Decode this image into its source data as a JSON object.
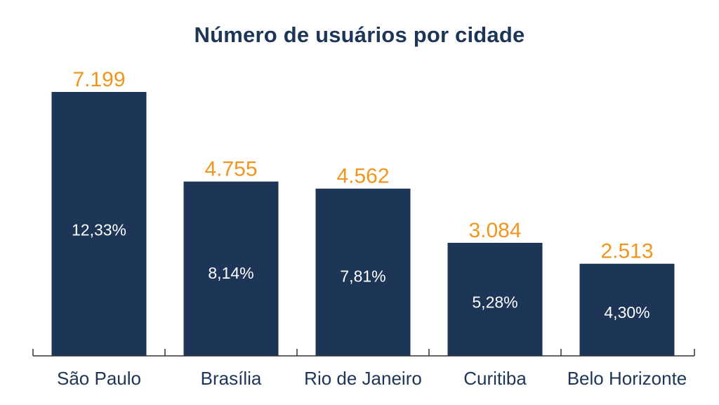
{
  "chart_data": {
    "type": "bar",
    "title": "Número de usuários por cidade",
    "categories": [
      "São Paulo",
      "Brasília",
      "Rio de Janeiro",
      "Curitiba",
      "Belo Horizonte"
    ],
    "values": [
      7199,
      4755,
      4562,
      3084,
      2513
    ],
    "value_labels": [
      "7.199",
      "4.755",
      "4.562",
      "3.084",
      "2.513"
    ],
    "percent_labels": [
      "12,33%",
      "8,14%",
      "7,81%",
      "5,28%",
      "4,30%"
    ],
    "ylim": [
      0,
      7199
    ],
    "grid": false,
    "legend": "none",
    "colors": {
      "bar": "#1d3557",
      "value_label": "#f0961e",
      "percent_label": "#ffffff",
      "category_label": "#1d3557",
      "axis": "#333333",
      "title": "#1d3557"
    }
  }
}
